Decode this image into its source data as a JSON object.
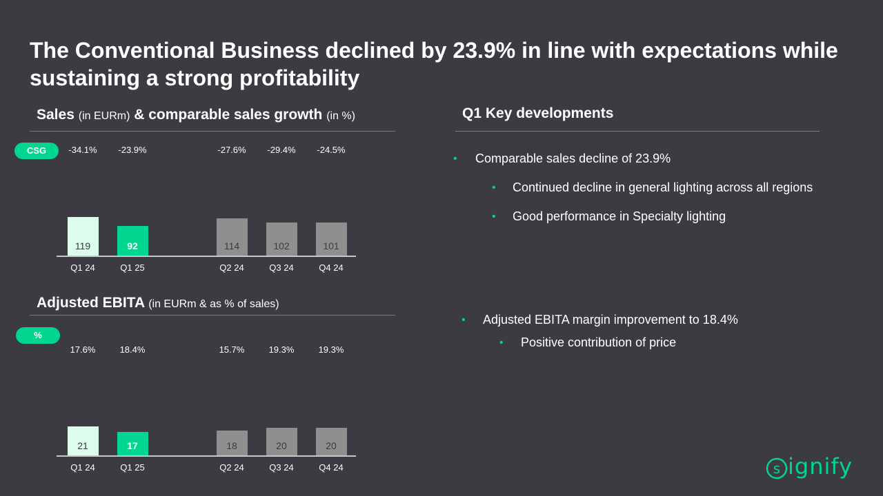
{
  "title": "The Conventional Business declined by 23.9% in line with expectations while sustaining a strong profitability",
  "sales_section": {
    "heading_main": "Sales",
    "heading_unit": "(in EURm)",
    "heading_amp": "& comparable sales growth",
    "heading_pct": "(in %)",
    "badge": "CSG"
  },
  "ebita_section": {
    "heading_main": "Adjusted EBITA",
    "heading_unit": "(in EURm & as % of sales)",
    "badge": "%"
  },
  "key_developments": {
    "heading": "Q1 Key developments",
    "bullets": [
      "Comparable sales decline of 23.9%",
      "Continued decline in general lighting across all regions",
      "Good performance in Specialty lighting",
      "Adjusted EBITA margin improvement to 18.4%",
      "Positive contribution of price"
    ]
  },
  "colors": {
    "background": "#3c3b41",
    "accent": "#00d68f",
    "bar_grey": "#8f8f8f",
    "bar_light": "#dcfcee"
  },
  "brand": {
    "logo_text": "ignify"
  },
  "chart_data": [
    {
      "type": "bar",
      "name": "sales",
      "categories": [
        "Q1 24",
        "Q1 25",
        "Q2 24",
        "Q3 24",
        "Q4 24"
      ],
      "values": [
        119,
        92,
        114,
        102,
        101
      ],
      "value_labels": [
        "119",
        "92",
        "114",
        "102",
        "101"
      ],
      "growth_labels": [
        "-34.1%",
        "-23.9%",
        "-27.6%",
        "-29.4%",
        "-24.5%"
      ],
      "highlight_index": 1
    },
    {
      "type": "bar",
      "name": "ebita",
      "categories": [
        "Q1 24",
        "Q1 25",
        "Q2 24",
        "Q3 24",
        "Q4 24"
      ],
      "values": [
        21,
        17,
        18,
        20,
        20
      ],
      "value_labels": [
        "21",
        "17",
        "18",
        "20",
        "20"
      ],
      "margin_labels": [
        "17.6%",
        "18.4%",
        "15.7%",
        "19.3%",
        "19.3%"
      ],
      "highlight_index": 1
    }
  ]
}
